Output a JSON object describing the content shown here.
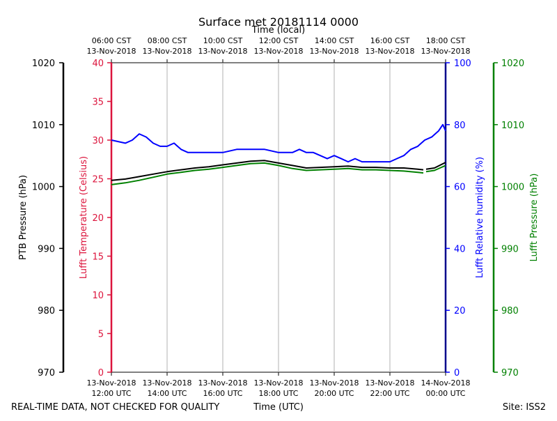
{
  "chart_data": {
    "type": "line",
    "title": "Surface met 20181114 0000",
    "top_axis_label": "Time (local)",
    "bottom_axis_label": "Time (UTC)",
    "footer_left": "REAL-TIME DATA, NOT CHECKED FOR QUALITY",
    "footer_right": "Site: ISS2",
    "x_range_hours_utc": [
      12,
      24
    ],
    "bottom_ticks": [
      {
        "hour": 12,
        "line1": "13-Nov-2018",
        "line2": "12:00 UTC"
      },
      {
        "hour": 14,
        "line1": "13-Nov-2018",
        "line2": "14:00 UTC"
      },
      {
        "hour": 16,
        "line1": "13-Nov-2018",
        "line2": "16:00 UTC"
      },
      {
        "hour": 18,
        "line1": "13-Nov-2018",
        "line2": "18:00 UTC"
      },
      {
        "hour": 20,
        "line1": "13-Nov-2018",
        "line2": "20:00 UTC"
      },
      {
        "hour": 22,
        "line1": "13-Nov-2018",
        "line2": "22:00 UTC"
      },
      {
        "hour": 24,
        "line1": "14-Nov-2018",
        "line2": "00:00 UTC"
      }
    ],
    "top_ticks": [
      {
        "hour": 12,
        "line1": "06:00 CST",
        "line2": "13-Nov-2018"
      },
      {
        "hour": 14,
        "line1": "08:00 CST",
        "line2": "13-Nov-2018"
      },
      {
        "hour": 16,
        "line1": "10:00 CST",
        "line2": "13-Nov-2018"
      },
      {
        "hour": 18,
        "line1": "12:00 CST",
        "line2": "13-Nov-2018"
      },
      {
        "hour": 20,
        "line1": "14:00 CST",
        "line2": "13-Nov-2018"
      },
      {
        "hour": 22,
        "line1": "16:00 CST",
        "line2": "13-Nov-2018"
      },
      {
        "hour": 24,
        "line1": "18:00 CST",
        "line2": "13-Nov-2018"
      }
    ],
    "axes": {
      "ptb_pressure": {
        "label": "PTB Pressure (hPa)",
        "range": [
          970,
          1020
        ],
        "ticks": [
          970,
          980,
          990,
          1000,
          1010,
          1020
        ],
        "color": "#000000"
      },
      "temperature": {
        "label": "Lufft Temperature (Celsius)",
        "range": [
          0,
          40
        ],
        "ticks": [
          0,
          5,
          10,
          15,
          20,
          25,
          30,
          35,
          40
        ],
        "color": "#dc143c"
      },
      "humidity": {
        "label": "Lufft Relative humidity (%)",
        "range": [
          0,
          100
        ],
        "ticks": [
          0,
          20,
          40,
          60,
          80,
          100
        ],
        "color": "#0000ff"
      },
      "lufft_pressure": {
        "label": "Lufft Pressure (hPa)",
        "range": [
          970,
          1020
        ],
        "ticks": [
          970,
          980,
          990,
          1000,
          1010,
          1020
        ],
        "color": "#008000"
      }
    },
    "series": [
      {
        "name": "Lufft Relative humidity (%)",
        "axis": "humidity",
        "color": "#0000ff",
        "x": [
          12.0,
          12.5,
          12.75,
          13.0,
          13.25,
          13.5,
          13.75,
          14.0,
          14.25,
          14.5,
          14.75,
          15.0,
          15.5,
          16.0,
          16.5,
          17.0,
          17.5,
          18.0,
          18.25,
          18.5,
          18.75,
          19.0,
          19.25,
          19.5,
          19.75,
          20.0,
          20.25,
          20.5,
          20.75,
          21.0,
          21.25,
          21.5,
          21.75,
          22.0,
          22.25,
          22.5,
          22.75,
          23.0,
          23.25,
          23.5,
          23.75,
          23.9,
          24.0
        ],
        "y": [
          75,
          74,
          75,
          77,
          76,
          74,
          73,
          73,
          74,
          72,
          71,
          71,
          71,
          71,
          72,
          72,
          72,
          71,
          71,
          71,
          72,
          71,
          71,
          70,
          69,
          70,
          69,
          68,
          69,
          68,
          68,
          68,
          68,
          68,
          69,
          70,
          72,
          73,
          75,
          76,
          78,
          80,
          78
        ]
      },
      {
        "name": "PTB Pressure (hPa)",
        "axis": "ptb_pressure",
        "color": "#000000",
        "gap_after_hour": 23.2,
        "x": [
          12.0,
          12.5,
          13.0,
          13.5,
          14.0,
          14.5,
          15.0,
          15.5,
          16.0,
          16.5,
          17.0,
          17.5,
          18.0,
          18.5,
          19.0,
          19.5,
          20.0,
          20.5,
          21.0,
          21.5,
          22.0,
          22.5,
          23.0,
          23.2,
          23.3,
          23.6,
          24.0
        ],
        "y": [
          1001.0,
          1001.2,
          1001.6,
          1002.0,
          1002.4,
          1002.7,
          1003.0,
          1003.2,
          1003.5,
          1003.8,
          1004.1,
          1004.2,
          1003.8,
          1003.4,
          1003.0,
          1003.1,
          1003.2,
          1003.3,
          1003.1,
          1003.1,
          1003.0,
          1003.0,
          1002.8,
          1002.7,
          1002.8,
          1003.0,
          1003.9
        ]
      },
      {
        "name": "Lufft Pressure (hPa)",
        "axis": "lufft_pressure",
        "color": "#008000",
        "gap_after_hour": 23.2,
        "x": [
          12.0,
          12.5,
          13.0,
          13.5,
          14.0,
          14.5,
          15.0,
          15.5,
          16.0,
          16.5,
          17.0,
          17.5,
          18.0,
          18.5,
          19.0,
          19.5,
          20.0,
          20.5,
          21.0,
          21.5,
          22.0,
          22.5,
          23.0,
          23.2,
          23.3,
          23.6,
          24.0
        ],
        "y": [
          1000.3,
          1000.6,
          1001.0,
          1001.5,
          1002.0,
          1002.3,
          1002.6,
          1002.8,
          1003.1,
          1003.4,
          1003.7,
          1003.8,
          1003.4,
          1002.9,
          1002.6,
          1002.7,
          1002.8,
          1002.9,
          1002.7,
          1002.7,
          1002.6,
          1002.5,
          1002.3,
          1002.2,
          1002.4,
          1002.6,
          1003.4
        ]
      }
    ]
  }
}
